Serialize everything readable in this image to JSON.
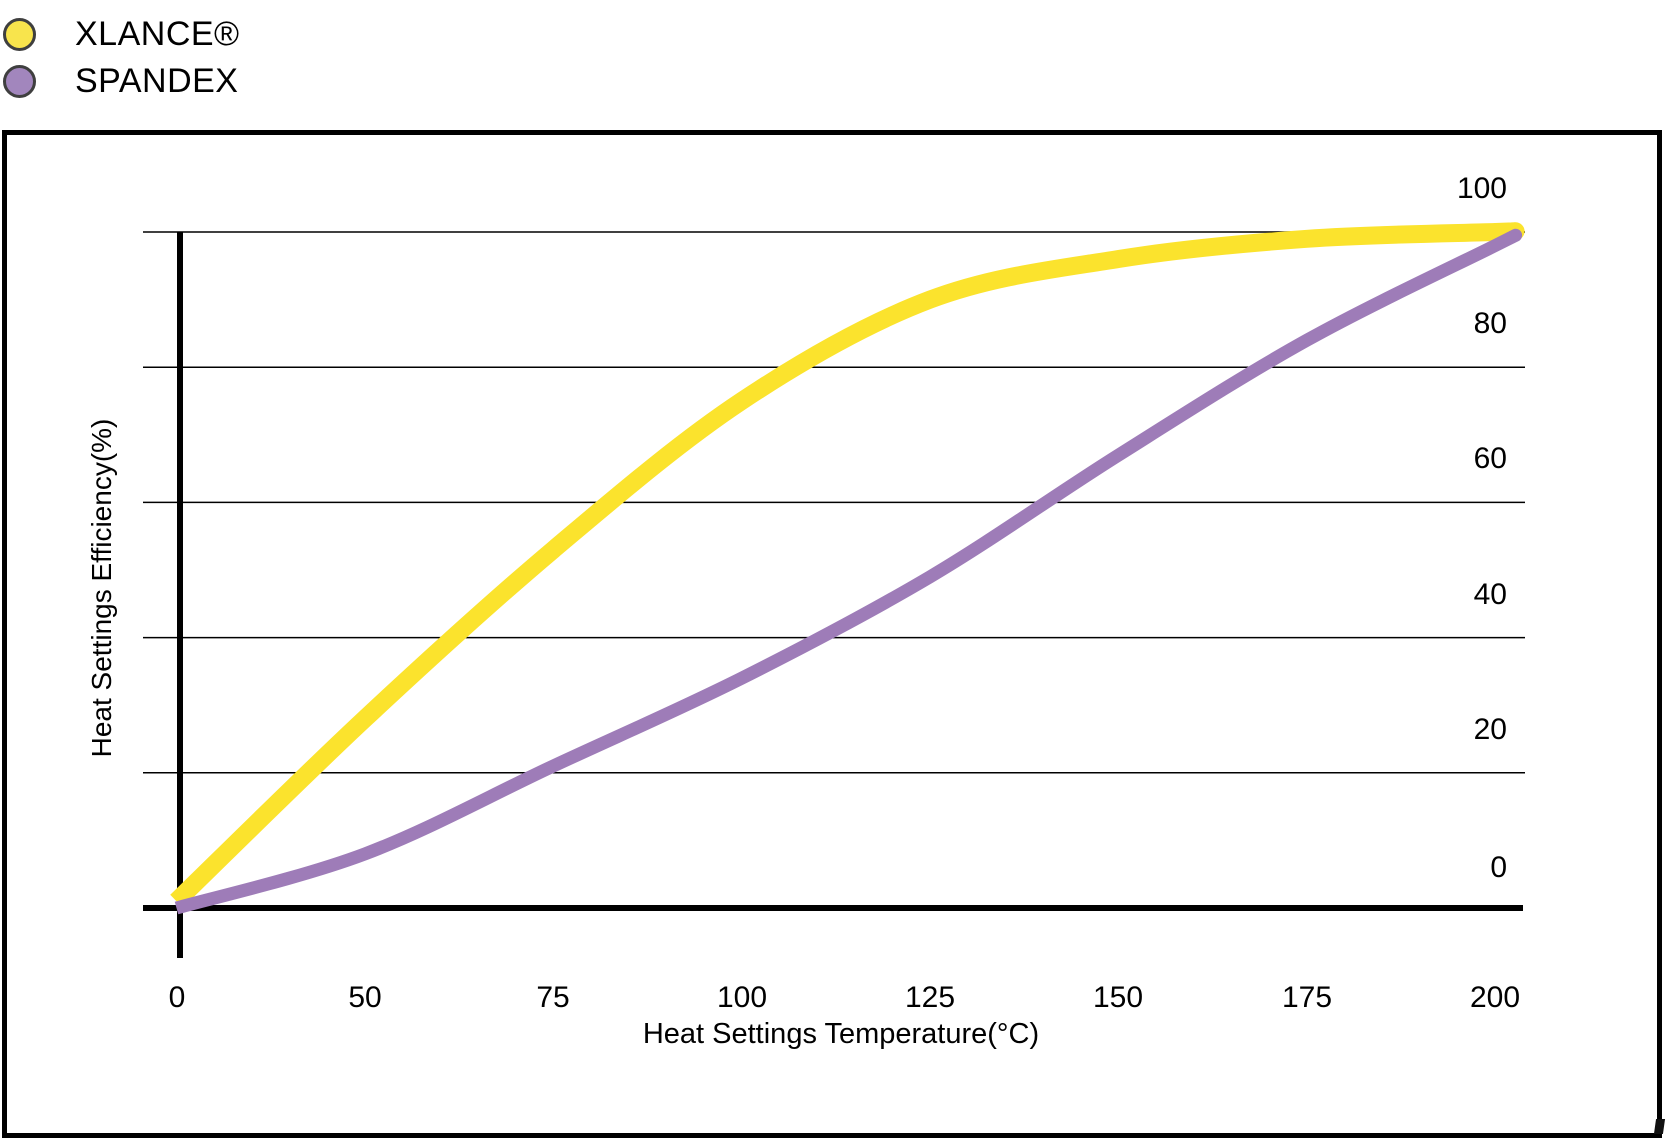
{
  "legend": {
    "items": [
      {
        "label": "XLANCE®",
        "color": "#F8E44C"
      },
      {
        "label": "SPANDEX",
        "color": "#A286BD"
      }
    ]
  },
  "chart_data": {
    "type": "line",
    "x_axis_type": "categorical",
    "categories": [
      "0",
      "50",
      "75",
      "100",
      "125",
      "150",
      "175",
      "200"
    ],
    "series": [
      {
        "name": "XLANCE®",
        "color": "#FBE32D",
        "stroke_width": 18,
        "values": [
          1,
          28,
          53,
          75,
          90,
          96,
          99,
          100
        ]
      },
      {
        "name": "SPANDEX",
        "color": "#9E7CB8",
        "stroke_width": 13,
        "values": [
          0,
          8,
          21,
          34,
          49,
          67,
          84,
          98
        ]
      }
    ],
    "title": "",
    "xlabel": "Heat Settings Temperature(°C)",
    "ylabel": "Heat Settings Efficiency(%)",
    "ylim": [
      0,
      100
    ],
    "yticks": [
      0,
      20,
      40,
      60,
      80,
      100
    ],
    "grid": "horizontal-only",
    "legend_position": "top-left-outside",
    "axis_color": "#000000",
    "gridline_color": "#000000"
  }
}
